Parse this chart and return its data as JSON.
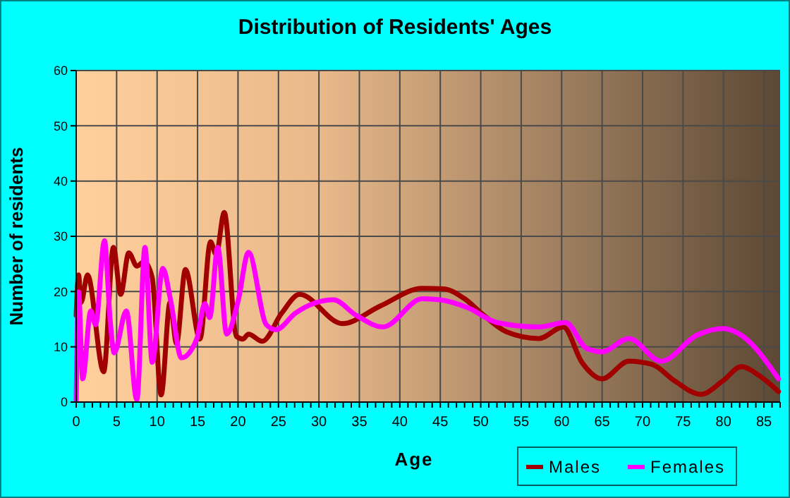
{
  "chart_data": {
    "type": "line",
    "title": "Distribution of Residents' Ages",
    "xlabel": "Age",
    "ylabel": "Number of residents",
    "xlim": [
      0,
      87
    ],
    "xticks": [
      0,
      5,
      10,
      15,
      20,
      25,
      30,
      35,
      40,
      45,
      50,
      55,
      60,
      65,
      70,
      75,
      80,
      85
    ],
    "ylim": [
      0,
      60
    ],
    "yticks": [
      0,
      10,
      20,
      30,
      40,
      50,
      60
    ],
    "grid": true,
    "legend": "bottom right",
    "line_style": "solid",
    "series": [
      {
        "name": "Males",
        "color": "#a00000",
        "x": [
          0,
          0.3,
          0.6,
          1.4,
          3.4,
          4.6,
          5.5,
          6.5,
          7.5,
          8.4,
          9.4,
          10.5,
          11.6,
          12.4,
          13.5,
          15.3,
          16.6,
          17.3,
          18.3,
          19.8,
          20.6,
          21.3,
          23,
          25.4,
          27.6,
          32.9,
          37.6,
          42.8,
          45.4,
          48,
          50.3,
          53.2,
          57.2,
          60.2,
          62.5,
          65,
          68.3,
          71.2,
          74,
          77.2,
          79.9,
          82.2,
          84.5,
          86.8
        ],
        "values": [
          15.7,
          23,
          18,
          23,
          5.5,
          28,
          19.5,
          27,
          24.6,
          25.4,
          22.5,
          1.3,
          18,
          10.6,
          24,
          11.4,
          29,
          26.7,
          34.3,
          11.9,
          11.4,
          12.3,
          11,
          16.1,
          19.5,
          14.2,
          17.4,
          20.6,
          20.5,
          18.7,
          15.8,
          12.7,
          11.5,
          13.6,
          7.2,
          4.2,
          7.4,
          6.8,
          3.8,
          1.4,
          3.8,
          6.4,
          4.7,
          1.9
        ]
      },
      {
        "name": "Females",
        "color": "#ff00ff",
        "x": [
          0,
          0.3,
          0.8,
          1.8,
          2.4,
          3.5,
          4.2,
          4.7,
          6.2,
          7.5,
          8.5,
          9.4,
          10.7,
          11.7,
          13,
          14.9,
          15.9,
          16.5,
          17.5,
          18.6,
          20,
          21.3,
          23.5,
          24.7,
          27.1,
          31.8,
          34.6,
          37.9,
          42.8,
          45,
          48.5,
          52,
          57.2,
          60.5,
          63.1,
          65,
          68.3,
          72.3,
          76.7,
          79.9,
          82.2,
          86.8
        ],
        "values": [
          0.4,
          19.9,
          4.2,
          16.5,
          14,
          29.2,
          14.8,
          8.9,
          16.5,
          0.4,
          28,
          7.2,
          24.2,
          18.2,
          8,
          11.4,
          17.8,
          15.3,
          28,
          12.3,
          18.2,
          27.1,
          14,
          13.1,
          16.1,
          18.5,
          15.7,
          13.6,
          18.7,
          18.5,
          17,
          14.4,
          13.6,
          14.4,
          9.7,
          9.1,
          11.5,
          7.4,
          12.1,
          13.3,
          12.1,
          4.2
        ]
      }
    ]
  }
}
